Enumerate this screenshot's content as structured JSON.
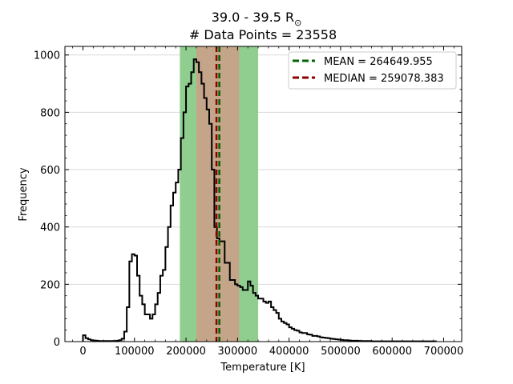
{
  "chart_data": {
    "type": "histogram",
    "title_line1": "39.0 - 39.5 R",
    "title_symbol": "⊙",
    "title_line2": "# Data Points = 23558",
    "xlabel": "Temperature [K]",
    "ylabel": "Frequency",
    "xlim": [
      -35000,
      735000
    ],
    "ylim": [
      0,
      1030
    ],
    "xticks": [
      0,
      100000,
      200000,
      300000,
      400000,
      500000,
      600000,
      700000
    ],
    "xtick_labels": [
      "0",
      "100000",
      "200000",
      "300000",
      "400000",
      "500000",
      "600000",
      "700000"
    ],
    "yticks": [
      0,
      200,
      400,
      600,
      800,
      1000
    ],
    "ytick_labels": [
      "0",
      "200",
      "400",
      "600",
      "800",
      "1000"
    ],
    "grid": "horizontal",
    "legend_placement": "top-right",
    "mean": 264649.955,
    "median": 259078.383,
    "mean_label": "MEAN = 264649.955",
    "median_label": "MEDIAN = 259078.383",
    "shaded_outer": [
      188000,
      340000
    ],
    "shaded_inner": [
      220000,
      303000
    ],
    "bin_width": 5000,
    "bin_start": 0,
    "values": [
      22,
      12,
      8,
      5,
      4,
      3,
      2,
      2,
      2,
      2,
      2,
      2,
      2,
      3,
      5,
      10,
      35,
      120,
      280,
      305,
      300,
      230,
      160,
      130,
      95,
      95,
      80,
      95,
      130,
      170,
      230,
      250,
      330,
      400,
      475,
      520,
      555,
      600,
      710,
      800,
      890,
      900,
      940,
      985,
      975,
      940,
      900,
      850,
      810,
      760,
      600,
      400,
      360,
      350,
      350,
      275,
      275,
      215,
      215,
      200,
      195,
      190,
      180,
      180,
      210,
      195,
      170,
      160,
      150,
      150,
      140,
      135,
      140,
      120,
      110,
      100,
      80,
      70,
      65,
      60,
      50,
      45,
      40,
      38,
      32,
      30,
      30,
      25,
      24,
      20,
      20,
      18,
      15,
      14,
      13,
      12,
      10,
      9,
      8,
      7,
      6,
      5,
      5,
      4,
      3,
      3,
      3,
      2,
      2,
      2,
      2,
      2,
      1,
      1,
      1,
      1,
      1,
      1,
      1,
      1,
      1,
      1,
      1,
      1,
      1,
      1,
      1,
      1,
      1,
      1,
      1,
      1,
      1,
      1,
      1,
      1,
      1
    ],
    "colors": {
      "histogram": "#000000",
      "outer_band": "#8fce8f",
      "inner_band": "#c4a58a",
      "mean": "#006400",
      "median": "#8b0000",
      "grid": "#d9d9d9"
    }
  }
}
